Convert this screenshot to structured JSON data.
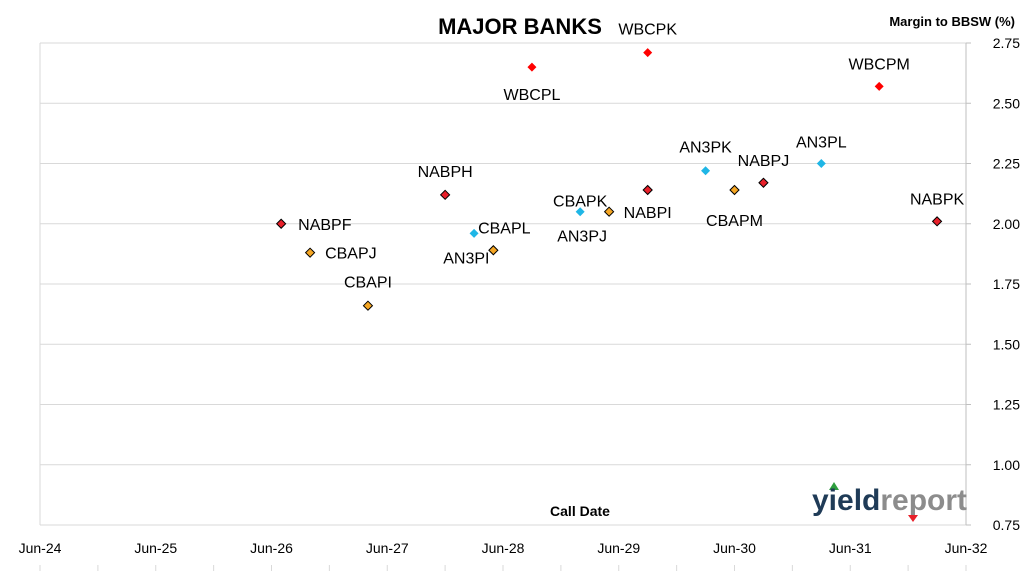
{
  "chart_data": {
    "type": "scatter",
    "title": "MAJOR BANKS",
    "ylabel": "Margin to BBSW (%)",
    "xlabel": "Call Date",
    "x_ticks": [
      "Jun-24",
      "Jun-25",
      "Jun-26",
      "Jun-27",
      "Jun-28",
      "Jun-29",
      "Jun-30",
      "Jun-31",
      "Jun-32"
    ],
    "y_ticks": [
      "0.75",
      "1.00",
      "1.25",
      "1.50",
      "1.75",
      "2.00",
      "2.25",
      "2.50",
      "2.75"
    ],
    "xlim": [
      "2024-06",
      "2032-06"
    ],
    "ylim": [
      0.75,
      2.75
    ],
    "y_axis_position": "right",
    "grid": "horizontal",
    "legend": "none",
    "colors": {
      "NAB": "#e8202a",
      "CBA": "#f5a623",
      "ANZ": "#1fb6e6",
      "WBC": "#ff0000"
    },
    "points": [
      {
        "label": "NABPF",
        "x": "2026-07",
        "y": 2.0,
        "bank": "NAB",
        "outline": true
      },
      {
        "label": "CBAPJ",
        "x": "2026-10",
        "y": 1.88,
        "bank": "CBA",
        "outline": true
      },
      {
        "label": "CBAPI",
        "x": "2027-04",
        "y": 1.66,
        "bank": "CBA",
        "outline": true
      },
      {
        "label": "NABPH",
        "x": "2027-12",
        "y": 2.12,
        "bank": "NAB",
        "outline": true
      },
      {
        "label": "CBAPL",
        "x": "2028-03",
        "y": 1.96,
        "bank": "ANZ",
        "outline": false
      },
      {
        "label": "AN3PI",
        "x": "2028-05",
        "y": 1.89,
        "bank": "CBA",
        "outline": true
      },
      {
        "label": "WBCPL",
        "x": "2028-09",
        "y": 2.65,
        "bank": "WBC",
        "outline": false
      },
      {
        "label": "CBAPK",
        "x": "2029-02",
        "y": 2.05,
        "bank": "ANZ",
        "outline": false
      },
      {
        "label": "AN3PJ",
        "x": "2029-05",
        "y": 2.05,
        "bank": "CBA",
        "outline": true
      },
      {
        "label": "NABPI",
        "x": "2029-09",
        "y": 2.14,
        "bank": "NAB",
        "outline": true
      },
      {
        "label": "WBCPK",
        "x": "2029-09",
        "y": 2.71,
        "bank": "WBC",
        "outline": false
      },
      {
        "label": "AN3PK",
        "x": "2030-03",
        "y": 2.22,
        "bank": "ANZ",
        "outline": false
      },
      {
        "label": "CBAPM",
        "x": "2030-06",
        "y": 2.14,
        "bank": "CBA",
        "outline": true
      },
      {
        "label": "NABPJ",
        "x": "2030-09",
        "y": 2.17,
        "bank": "NAB",
        "outline": true
      },
      {
        "label": "AN3PL",
        "x": "2031-03",
        "y": 2.25,
        "bank": "ANZ",
        "outline": false
      },
      {
        "label": "WBCPM",
        "x": "2031-09",
        "y": 2.57,
        "bank": "WBC",
        "outline": false
      },
      {
        "label": "NABPK",
        "x": "2032-03",
        "y": 2.01,
        "bank": "NAB",
        "outline": true
      }
    ]
  },
  "logo": {
    "text": "yieldreport",
    "part1": "yield",
    "part2": "report",
    "color1": "#1f3b57",
    "color2": "#8c8c8c"
  }
}
